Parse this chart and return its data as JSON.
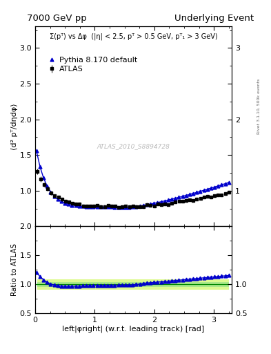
{
  "title_left": "7000 GeV pp",
  "title_right": "Underlying Event",
  "annotation": "ATLAS_2010_S8894728",
  "annotation_right": "Rivet 3.1.10, 500k events",
  "xlabel": "left|φright| (w.r.t. leading track) [rad]",
  "ylabel_main": "⟨d² pᵀ/dηdφ⟩",
  "ylabel_ratio": "Ratio to ATLAS",
  "inner_label": "Σ(pᵀ) vs Δφ  (|η| < 2.5, pᵀ > 0.5 GeV, pᵀ₁ > 3 GeV)",
  "ylim_main": [
    0.5,
    3.3
  ],
  "ylim_ratio": [
    0.5,
    2.0
  ],
  "yticks_main": [
    1.0,
    1.5,
    2.0,
    2.5,
    3.0
  ],
  "yticks_ratio": [
    0.5,
    1.0,
    1.5,
    2.0
  ],
  "xlim": [
    0,
    3.3
  ],
  "xticks": [
    0,
    1,
    2,
    3
  ],
  "band_inner_color": "#aae88a",
  "band_outer_color": "#ddfa90",
  "line_color": "#0000cc",
  "data_color": "#000000",
  "background_color": "#ffffff",
  "ratio_band_inner": 0.04,
  "ratio_band_outer": 0.09
}
